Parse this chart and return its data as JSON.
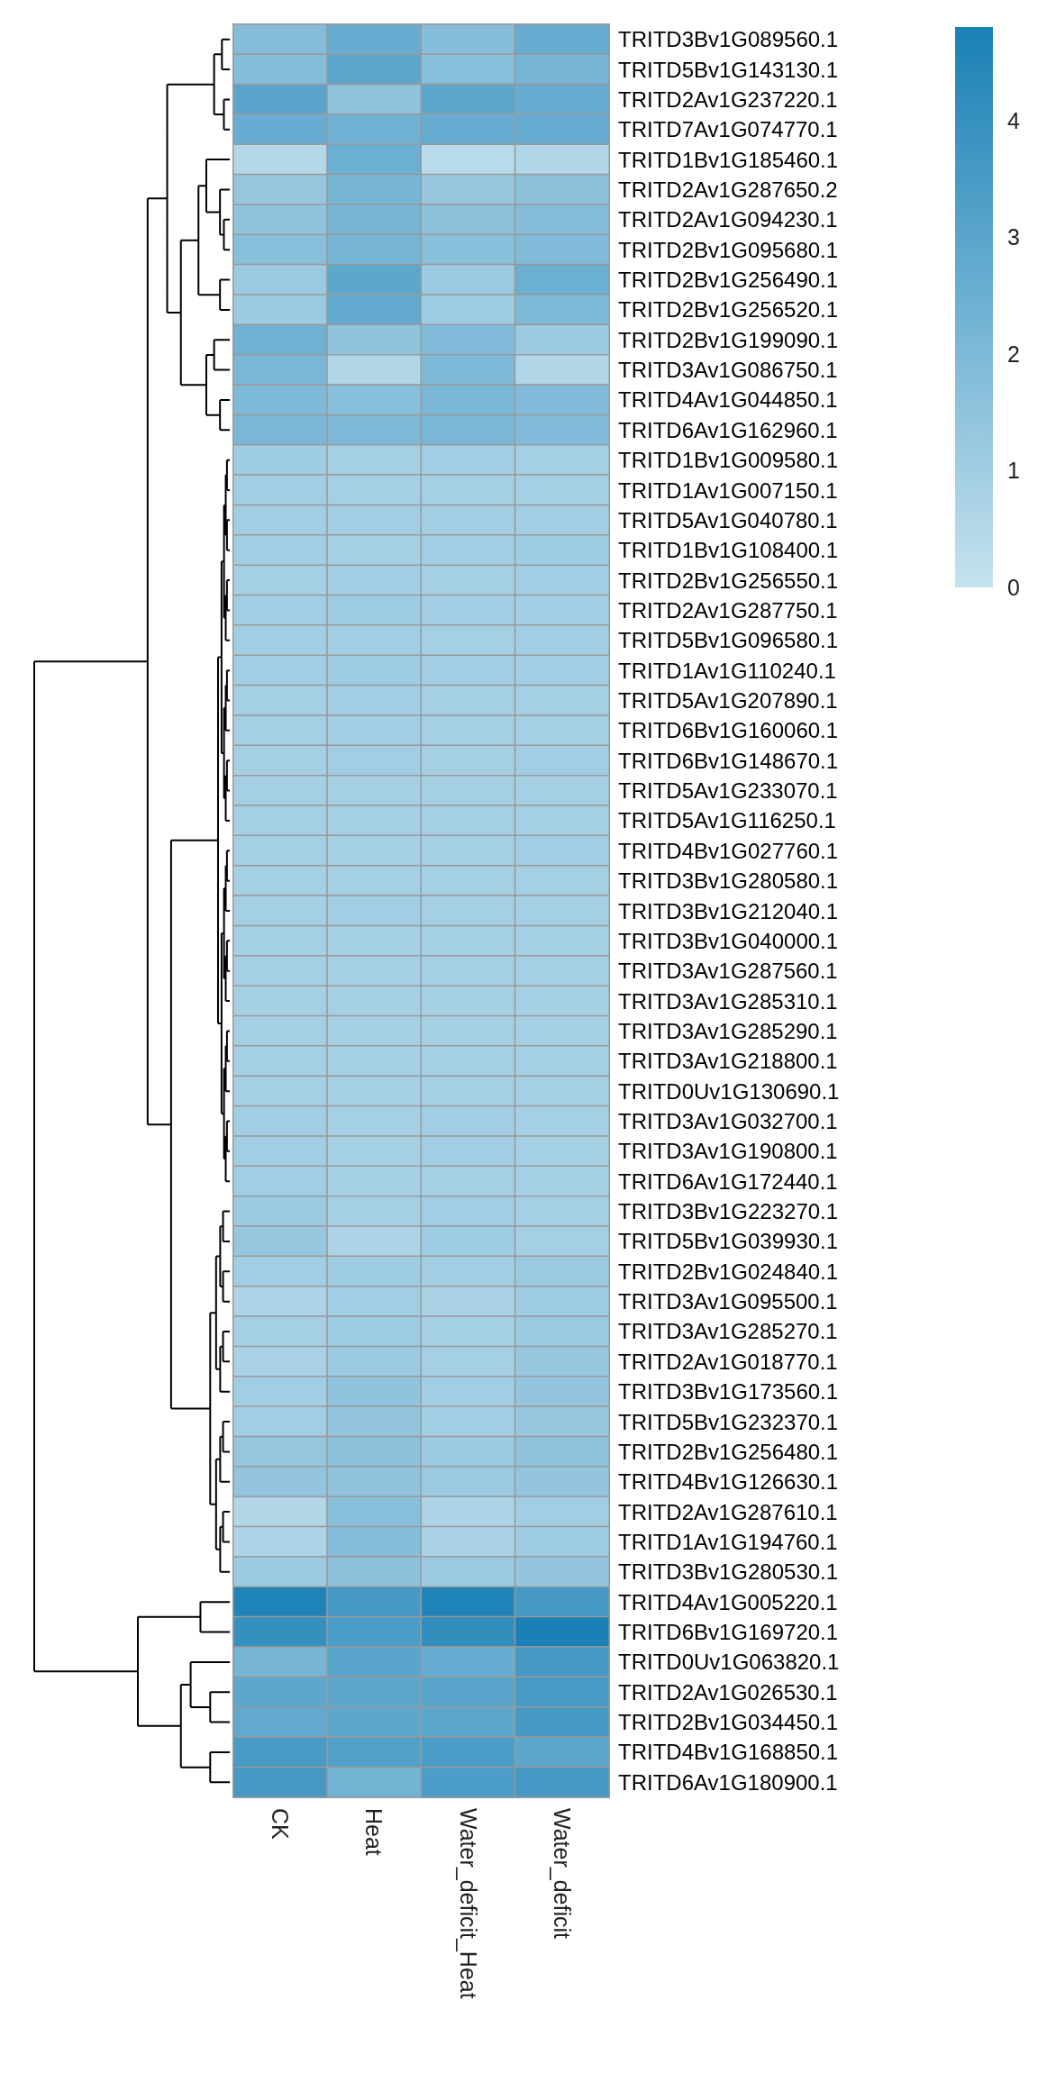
{
  "chart_data": {
    "type": "heatmap",
    "categories": [
      "CK",
      "Heat",
      "Water_deficit_Heat",
      "Water_deficit"
    ],
    "y_categories": [
      "TRITD3Bv1G089560.1",
      "TRITD5Bv1G143130.1",
      "TRITD2Av1G237220.1",
      "TRITD7Av1G074770.1",
      "TRITD1Bv1G185460.1",
      "TRITD2Av1G287650.2",
      "TRITD2Av1G094230.1",
      "TRITD2Bv1G095680.1",
      "TRITD2Bv1G256490.1",
      "TRITD2Bv1G256520.1",
      "TRITD2Bv1G199090.1",
      "TRITD3Av1G086750.1",
      "TRITD4Av1G044850.1",
      "TRITD6Av1G162960.1",
      "TRITD1Bv1G009580.1",
      "TRITD1Av1G007150.1",
      "TRITD5Av1G040780.1",
      "TRITD1Bv1G108400.1",
      "TRITD2Bv1G256550.1",
      "TRITD2Av1G287750.1",
      "TRITD5Bv1G096580.1",
      "TRITD1Av1G110240.1",
      "TRITD5Av1G207890.1",
      "TRITD6Bv1G160060.1",
      "TRITD6Bv1G148670.1",
      "TRITD5Av1G233070.1",
      "TRITD5Av1G116250.1",
      "TRITD4Bv1G027760.1",
      "TRITD3Bv1G280580.1",
      "TRITD3Bv1G212040.1",
      "TRITD3Bv1G040000.1",
      "TRITD3Av1G287560.1",
      "TRITD3Av1G285310.1",
      "TRITD3Av1G285290.1",
      "TRITD3Av1G218800.1",
      "TRITD0Uv1G130690.1",
      "TRITD3Av1G032700.1",
      "TRITD3Av1G190800.1",
      "TRITD6Av1G172440.1",
      "TRITD3Bv1G223270.1",
      "TRITD5Bv1G039930.1",
      "TRITD2Bv1G024840.1",
      "TRITD3Av1G095500.1",
      "TRITD3Av1G285270.1",
      "TRITD2Av1G018770.1",
      "TRITD3Bv1G173560.1",
      "TRITD5Bv1G232370.1",
      "TRITD2Bv1G256480.1",
      "TRITD4Bv1G126630.1",
      "TRITD2Av1G287610.1",
      "TRITD1Av1G194760.1",
      "TRITD3Bv1G280530.1",
      "TRITD4Av1G005220.1",
      "TRITD6Bv1G169720.1",
      "TRITD0Uv1G063820.1",
      "TRITD2Av1G026530.1",
      "TRITD2Bv1G034450.1",
      "TRITD4Bv1G168850.1",
      "TRITD6Av1G180900.1"
    ],
    "cells": [
      [
        1.8,
        2.6,
        1.8,
        2.6
      ],
      [
        1.8,
        2.9,
        1.7,
        2.2
      ],
      [
        3.0,
        1.5,
        2.9,
        2.6
      ],
      [
        2.6,
        2.4,
        2.6,
        2.7
      ],
      [
        0.5,
        2.5,
        0.4,
        0.6
      ],
      [
        1.3,
        2.2,
        1.3,
        1.6
      ],
      [
        1.5,
        2.2,
        1.6,
        1.8
      ],
      [
        1.7,
        2.2,
        1.7,
        1.9
      ],
      [
        1.2,
        2.9,
        1.2,
        2.5
      ],
      [
        1.2,
        2.8,
        1.1,
        2.0
      ],
      [
        2.4,
        1.5,
        1.9,
        1.2
      ],
      [
        2.1,
        0.6,
        2.0,
        0.6
      ],
      [
        2.0,
        1.7,
        2.1,
        1.9
      ],
      [
        2.1,
        2.0,
        2.1,
        1.9
      ],
      [
        1.1,
        0.9,
        1.0,
        0.9
      ],
      [
        1.0,
        0.9,
        0.9,
        0.9
      ],
      [
        1.0,
        1.0,
        1.0,
        1.0
      ],
      [
        1.0,
        0.9,
        1.0,
        1.1
      ],
      [
        0.9,
        1.0,
        0.9,
        1.0
      ],
      [
        1.0,
        1.1,
        1.0,
        1.0
      ],
      [
        1.0,
        1.0,
        0.9,
        1.0
      ],
      [
        1.0,
        1.1,
        1.0,
        1.0
      ],
      [
        0.9,
        1.0,
        0.9,
        0.9
      ],
      [
        0.9,
        1.0,
        0.9,
        0.9
      ],
      [
        0.9,
        1.0,
        0.9,
        1.0
      ],
      [
        0.9,
        0.9,
        0.9,
        0.9
      ],
      [
        0.9,
        0.9,
        0.9,
        0.9
      ],
      [
        0.9,
        0.9,
        0.9,
        1.0
      ],
      [
        0.9,
        0.9,
        0.9,
        0.9
      ],
      [
        0.9,
        1.0,
        0.9,
        0.9
      ],
      [
        0.9,
        0.9,
        0.9,
        0.9
      ],
      [
        0.9,
        0.9,
        0.9,
        0.9
      ],
      [
        0.9,
        0.9,
        0.9,
        0.9
      ],
      [
        0.9,
        0.9,
        0.9,
        0.9
      ],
      [
        0.9,
        0.9,
        0.9,
        0.9
      ],
      [
        0.9,
        0.9,
        0.9,
        0.9
      ],
      [
        1.0,
        0.9,
        1.0,
        0.9
      ],
      [
        1.0,
        0.9,
        1.0,
        0.9
      ],
      [
        1.0,
        0.9,
        0.9,
        0.9
      ],
      [
        1.2,
        0.9,
        1.0,
        0.9
      ],
      [
        1.3,
        0.7,
        1.1,
        0.9
      ],
      [
        1.0,
        1.1,
        1.0,
        1.2
      ],
      [
        0.7,
        1.0,
        0.8,
        1.1
      ],
      [
        0.9,
        1.1,
        0.9,
        1.2
      ],
      [
        0.8,
        1.2,
        0.9,
        1.3
      ],
      [
        1.0,
        1.5,
        1.0,
        1.4
      ],
      [
        1.0,
        1.4,
        1.0,
        1.3
      ],
      [
        1.3,
        1.6,
        1.2,
        1.5
      ],
      [
        1.4,
        1.5,
        1.2,
        1.4
      ],
      [
        0.6,
        1.7,
        0.7,
        1.0
      ],
      [
        0.7,
        1.8,
        0.8,
        1.1
      ],
      [
        1.2,
        1.6,
        1.2,
        1.4
      ],
      [
        4.6,
        3.6,
        4.6,
        3.6
      ],
      [
        4.0,
        3.4,
        4.1,
        4.8
      ],
      [
        2.2,
        3.0,
        2.6,
        3.6
      ],
      [
        2.9,
        2.9,
        3.0,
        3.5
      ],
      [
        2.8,
        2.9,
        2.9,
        3.6
      ],
      [
        3.5,
        3.2,
        3.4,
        2.9
      ],
      [
        3.6,
        2.3,
        3.4,
        3.6
      ]
    ],
    "clim": [
      0,
      4.8
    ],
    "cticks": [
      0,
      1,
      2,
      3,
      4
    ]
  }
}
